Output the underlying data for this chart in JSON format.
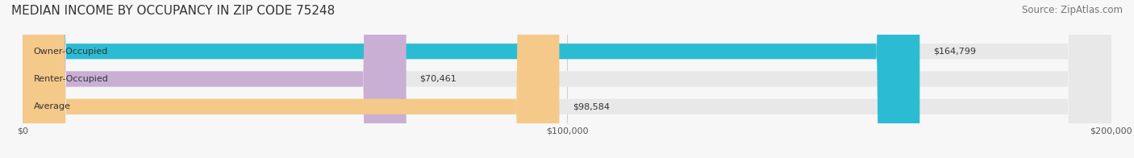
{
  "title": "MEDIAN INCOME BY OCCUPANCY IN ZIP CODE 75248",
  "source": "Source: ZipAtlas.com",
  "categories": [
    "Owner-Occupied",
    "Renter-Occupied",
    "Average"
  ],
  "values": [
    164799,
    70461,
    98584
  ],
  "bar_colors": [
    "#2bbcd4",
    "#c9afd4",
    "#f5c98a"
  ],
  "bar_bg_color": "#f0f0f0",
  "labels": [
    "$164,799",
    "$70,461",
    "$98,584"
  ],
  "xlim": [
    0,
    200000
  ],
  "xticks": [
    0,
    100000,
    200000
  ],
  "xtick_labels": [
    "$0",
    "$100,000",
    "$200,000"
  ],
  "title_fontsize": 11,
  "source_fontsize": 8.5,
  "label_fontsize": 8,
  "cat_fontsize": 8,
  "tick_fontsize": 8,
  "background_color": "#f7f7f7",
  "bar_height": 0.55,
  "bar_bg_alpha": 1.0
}
